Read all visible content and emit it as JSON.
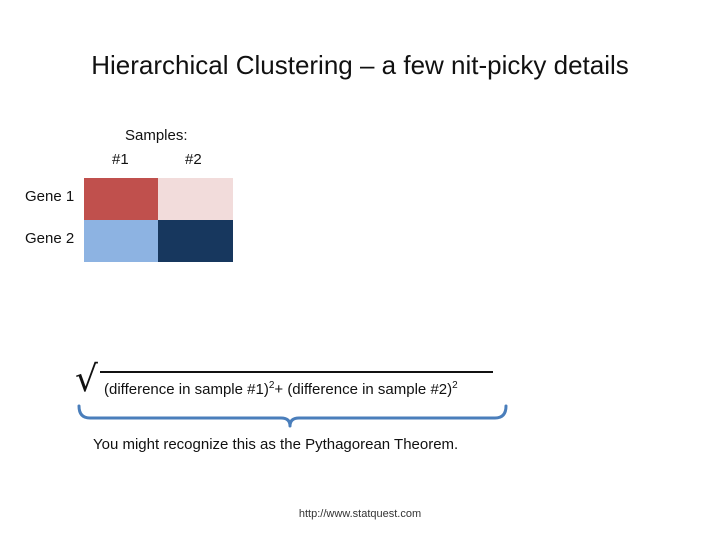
{
  "title": "Hierarchical Clustering – a few nit-picky details",
  "samples": {
    "label": "Samples:",
    "numbers": [
      "#1",
      "#2"
    ]
  },
  "genes": [
    "Gene 1",
    "Gene 2"
  ],
  "heatmap": {
    "colors": [
      [
        "#c0504d",
        "#f2dcdb"
      ],
      [
        "#8db3e2",
        "#17375e"
      ]
    ]
  },
  "formula": {
    "sqrt_symbol": "√",
    "part1": "(difference in sample #1)",
    "exp1": "2",
    "plus": "+ ",
    "part2": "(difference in sample #2)",
    "exp2": "2"
  },
  "brace_color": "#4a7ebb",
  "caption": "You might recognize this as the Pythagorean Theorem.",
  "footer": "http://www.statquest.com"
}
